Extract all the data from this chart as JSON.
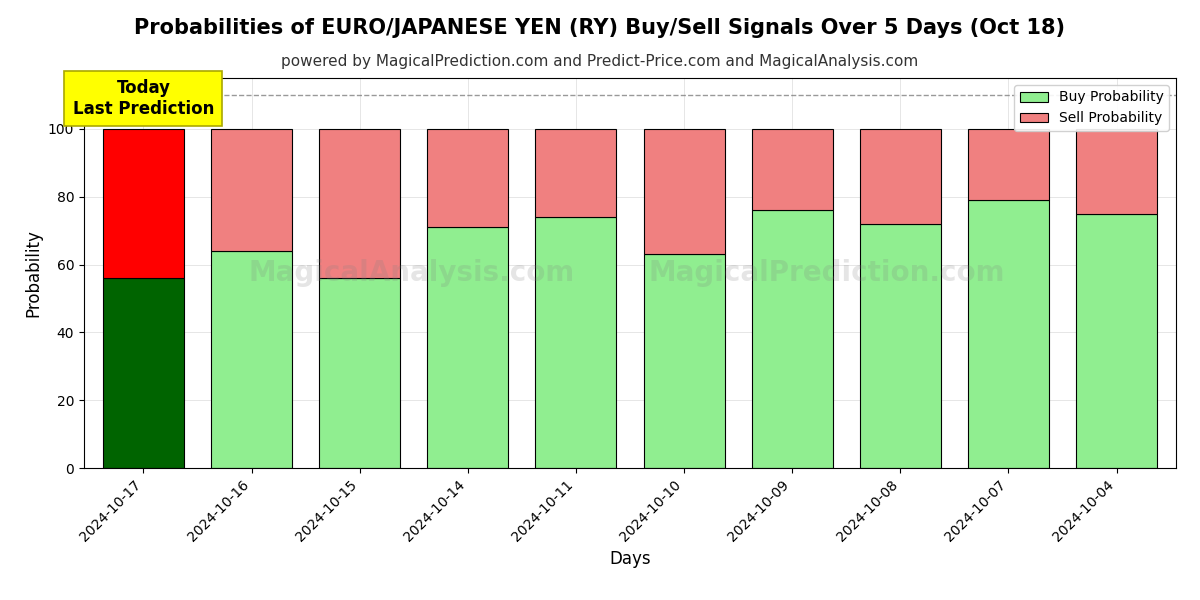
{
  "title": "Probabilities of EURO/JAPANESE YEN (RY) Buy/Sell Signals Over 5 Days (Oct 18)",
  "subtitle": "powered by MagicalPrediction.com and Predict-Price.com and MagicalAnalysis.com",
  "xlabel": "Days",
  "ylabel": "Probability",
  "categories": [
    "2024-10-17",
    "2024-10-16",
    "2024-10-15",
    "2024-10-14",
    "2024-10-11",
    "2024-10-10",
    "2024-10-09",
    "2024-10-08",
    "2024-10-07",
    "2024-10-04"
  ],
  "buy_values": [
    56,
    64,
    56,
    71,
    74,
    63,
    76,
    72,
    79,
    75
  ],
  "sell_values": [
    44,
    36,
    44,
    29,
    26,
    37,
    24,
    28,
    21,
    25
  ],
  "today_bar_buy_color": "#006400",
  "today_bar_sell_color": "#FF0000",
  "normal_buy_color": "#90EE90",
  "normal_sell_color": "#F08080",
  "today_box_color": "#FFFF00",
  "today_box_text": "Today\nLast Prediction",
  "legend_buy_label": "Buy Probability",
  "legend_sell_label": "Sell Probability",
  "ylim": [
    0,
    115
  ],
  "yticks": [
    0,
    20,
    40,
    60,
    80,
    100
  ],
  "dashed_line_y": 110,
  "background_color": "#ffffff",
  "watermark_text1": "MagicalAnalysis.com",
  "watermark_text2": "MagicalPrediction.com",
  "bar_edge_color": "#000000",
  "bar_linewidth": 0.8,
  "bar_width": 0.75,
  "title_fontsize": 15,
  "subtitle_fontsize": 11,
  "label_fontsize": 12,
  "tick_fontsize": 10
}
